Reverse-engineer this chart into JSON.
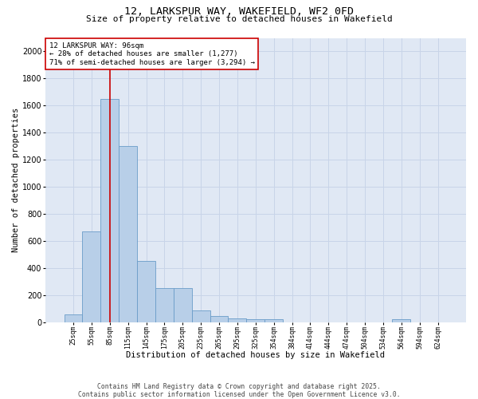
{
  "title1": "12, LARKSPUR WAY, WAKEFIELD, WF2 0FD",
  "title2": "Size of property relative to detached houses in Wakefield",
  "xlabel": "Distribution of detached houses by size in Wakefield",
  "ylabel": "Number of detached properties",
  "bar_values": [
    60,
    670,
    1650,
    1300,
    450,
    250,
    250,
    90,
    45,
    30,
    20,
    20,
    0,
    0,
    0,
    0,
    0,
    0,
    20,
    0,
    0
  ],
  "categories": [
    "25sqm",
    "55sqm",
    "85sqm",
    "115sqm",
    "145sqm",
    "175sqm",
    "205sqm",
    "235sqm",
    "265sqm",
    "295sqm",
    "325sqm",
    "354sqm",
    "384sqm",
    "414sqm",
    "444sqm",
    "474sqm",
    "504sqm",
    "534sqm",
    "564sqm",
    "594sqm",
    "624sqm"
  ],
  "bar_color": "#b8cfe8",
  "bar_edge_color": "#6a9cc8",
  "annotation_box_color": "#cc0000",
  "vline_color": "#cc0000",
  "vline_x": 2,
  "annotation_text": "12 LARKSPUR WAY: 96sqm\n← 28% of detached houses are smaller (1,277)\n71% of semi-detached houses are larger (3,294) →",
  "ylim": [
    0,
    2100
  ],
  "yticks": [
    0,
    200,
    400,
    600,
    800,
    1000,
    1200,
    1400,
    1600,
    1800,
    2000
  ],
  "grid_color": "#c8d4e8",
  "bg_color": "#e0e8f4",
  "footer": "Contains HM Land Registry data © Crown copyright and database right 2025.\nContains public sector information licensed under the Open Government Licence v3.0.",
  "title_fontsize": 9.5,
  "subtitle_fontsize": 8,
  "annotation_fontsize": 6.5,
  "footer_fontsize": 5.8,
  "ylabel_fontsize": 7.5,
  "xlabel_fontsize": 7.5,
  "ytick_fontsize": 7,
  "xtick_fontsize": 5.8
}
